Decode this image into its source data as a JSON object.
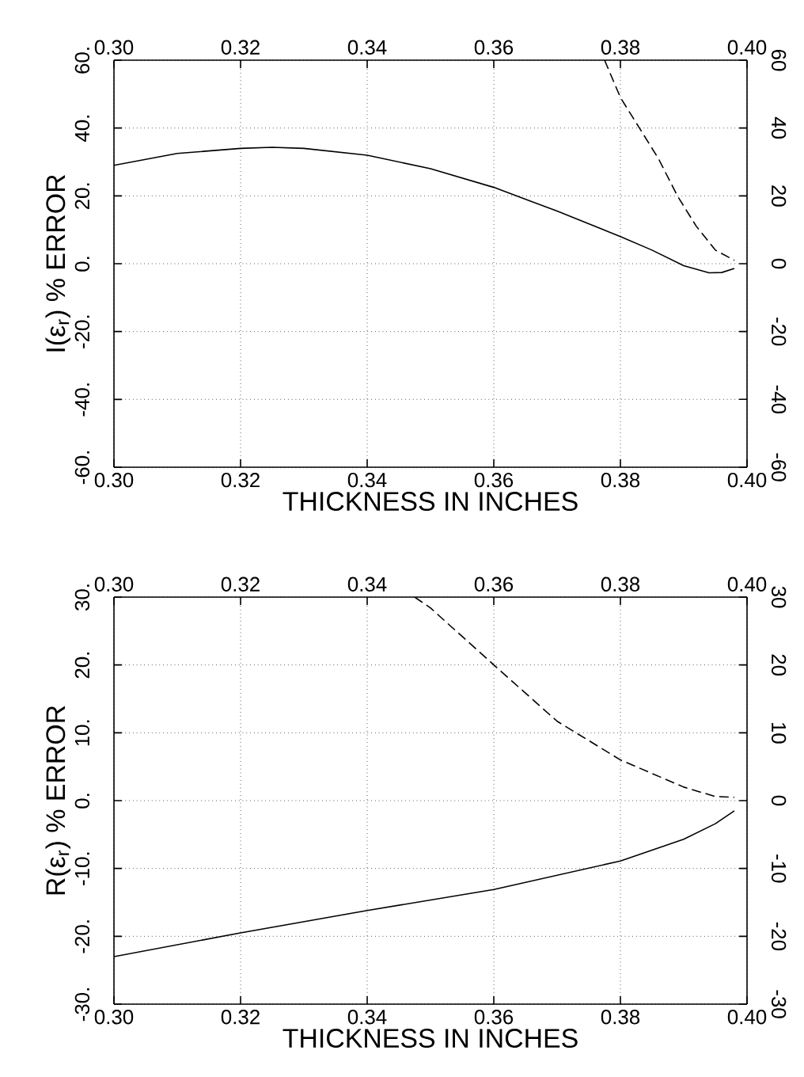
{
  "chart_data": [
    {
      "type": "line",
      "xlabel": "THICKNESS IN INCHES",
      "ylabel": "I(ε$_{r}$) % ERROR",
      "xlim": [
        0.3,
        0.4
      ],
      "xticks": [
        {
          "value": 0.3,
          "label": "0.30"
        },
        {
          "value": 0.32,
          "label": "0.32"
        },
        {
          "value": 0.34,
          "label": "0.34"
        },
        {
          "value": 0.36,
          "label": "0.36"
        },
        {
          "value": 0.38,
          "label": "0.38"
        },
        {
          "value": 0.4,
          "label": "0.40"
        }
      ],
      "x2lim": [
        0.3,
        0.4
      ],
      "x2ticks": [
        {
          "value": 0.3,
          "label": "0.30"
        },
        {
          "value": 0.32,
          "label": "0.32"
        },
        {
          "value": 0.34,
          "label": "0.34"
        },
        {
          "value": 0.36,
          "label": "0.36"
        },
        {
          "value": 0.38,
          "label": "0.38"
        },
        {
          "value": 0.4,
          "label": "0.40"
        }
      ],
      "ylim": [
        -60,
        60
      ],
      "yticks": [
        {
          "value": -60,
          "label": "-60."
        },
        {
          "value": -40,
          "label": "-40."
        },
        {
          "value": -20,
          "label": "-20."
        },
        {
          "value": 0,
          "label": "0."
        },
        {
          "value": 20,
          "label": "20."
        },
        {
          "value": 40,
          "label": "40."
        },
        {
          "value": 60,
          "label": "60."
        }
      ],
      "y2lim": [
        -60,
        60
      ],
      "y2ticks": [
        -60,
        -40,
        -20,
        0,
        20,
        40,
        60
      ],
      "grid": true,
      "series": [
        {
          "color": "#000000",
          "line_style": "solid",
          "x": [
            0.3,
            0.31,
            0.32,
            0.325,
            0.33,
            0.34,
            0.35,
            0.36,
            0.37,
            0.38,
            0.385,
            0.39,
            0.394,
            0.396,
            0.398
          ],
          "values": [
            29,
            32.5,
            34,
            34.3,
            34,
            32,
            28,
            22.5,
            15.5,
            8,
            4,
            -0.6,
            -2.7,
            -2.6,
            -1.4
          ]
        },
        {
          "color": "#000000",
          "line_style": "dashed",
          "x": [
            0.3775,
            0.38,
            0.383,
            0.386,
            0.389,
            0.392,
            0.395,
            0.398
          ],
          "values": [
            60,
            49,
            40,
            31,
            20,
            11,
            4,
            1
          ]
        }
      ]
    },
    {
      "type": "line",
      "xlabel": "THICKNESS IN INCHES",
      "ylabel": "R(ε$_{r}$) % ERROR",
      "xlim": [
        0.3,
        0.4
      ],
      "xticks": [
        {
          "value": 0.3,
          "label": "0.30"
        },
        {
          "value": 0.32,
          "label": "0.32"
        },
        {
          "value": 0.34,
          "label": "0.34"
        },
        {
          "value": 0.36,
          "label": "0.36"
        },
        {
          "value": 0.38,
          "label": "0.38"
        },
        {
          "value": 0.4,
          "label": "0.40"
        }
      ],
      "x2lim": [
        0.3,
        0.4
      ],
      "x2ticks": [
        {
          "value": 0.3,
          "label": "0.30"
        },
        {
          "value": 0.32,
          "label": "0.32"
        },
        {
          "value": 0.34,
          "label": "0.34"
        },
        {
          "value": 0.36,
          "label": "0.36"
        },
        {
          "value": 0.38,
          "label": "0.38"
        },
        {
          "value": 0.4,
          "label": "0.40"
        }
      ],
      "ylim": [
        -30,
        30
      ],
      "yticks": [
        {
          "value": -30,
          "label": "-30."
        },
        {
          "value": -20,
          "label": "-20."
        },
        {
          "value": -10,
          "label": "-10."
        },
        {
          "value": 0,
          "label": "0."
        },
        {
          "value": 10,
          "label": "10."
        },
        {
          "value": 20,
          "label": "20."
        },
        {
          "value": 30,
          "label": "30."
        }
      ],
      "y2lim": [
        -30,
        30
      ],
      "y2ticks": [
        -30,
        -20,
        -10,
        0,
        10,
        20,
        30
      ],
      "grid": true,
      "series": [
        {
          "color": "#000000",
          "line_style": "solid",
          "x": [
            0.3,
            0.32,
            0.34,
            0.36,
            0.37,
            0.38,
            0.39,
            0.395,
            0.398
          ],
          "values": [
            -23,
            -19.5,
            -16.2,
            -13.1,
            -11,
            -8.9,
            -5.7,
            -3.4,
            -1.5
          ]
        },
        {
          "color": "#000000",
          "line_style": "dashed",
          "x": [
            0.3475,
            0.35,
            0.36,
            0.37,
            0.38,
            0.39,
            0.395,
            0.398
          ],
          "values": [
            30,
            28.4,
            20,
            11.7,
            6,
            2,
            0.6,
            0.5
          ]
        }
      ]
    }
  ]
}
